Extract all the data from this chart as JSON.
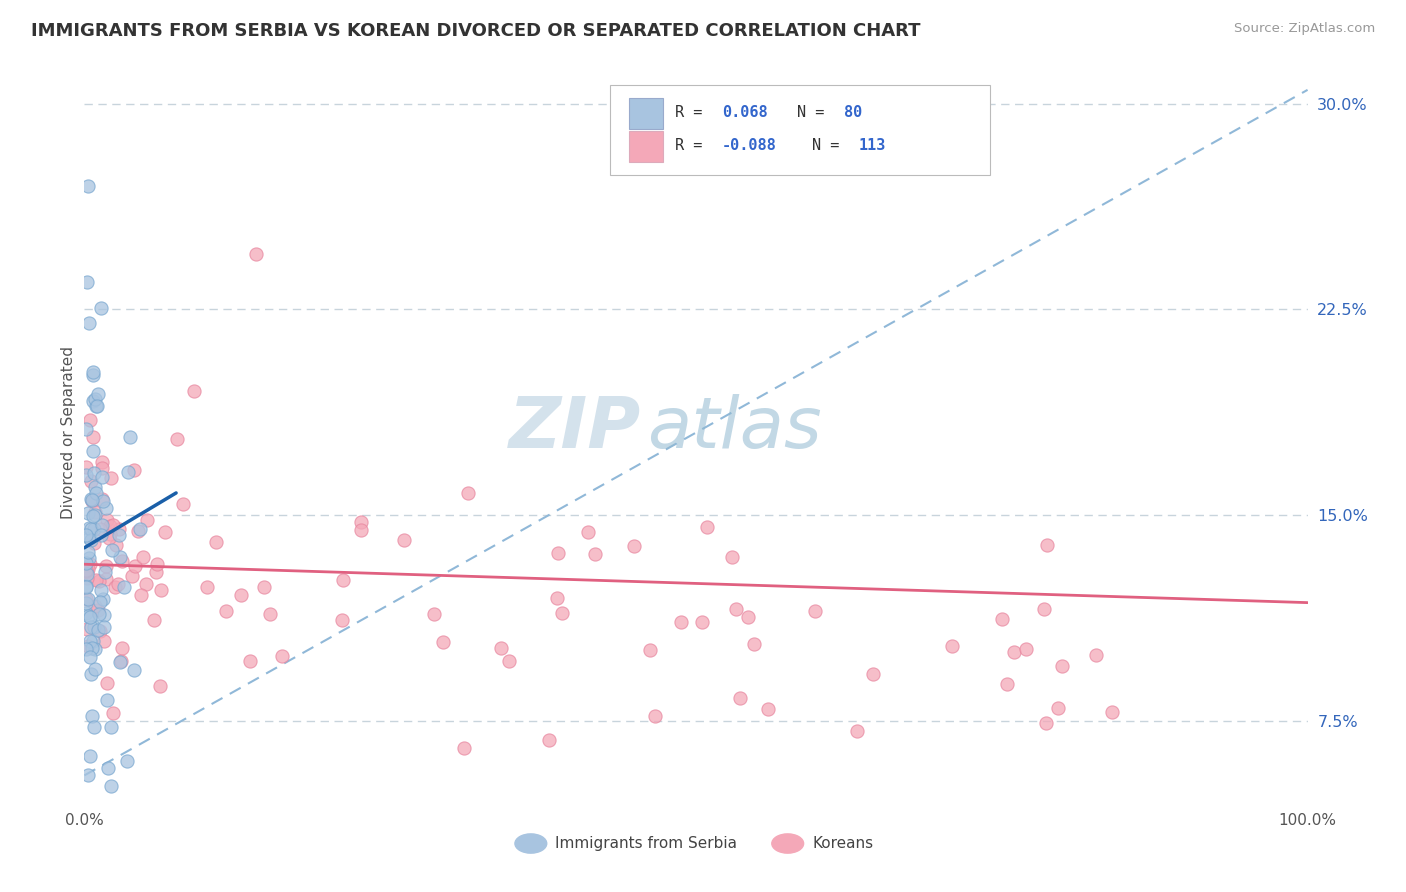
{
  "title": "IMMIGRANTS FROM SERBIA VS KOREAN DIVORCED OR SEPARATED CORRELATION CHART",
  "source": "Source: ZipAtlas.com",
  "ylabel": "Divorced or Separated",
  "y_ticks": [
    0.075,
    0.15,
    0.225,
    0.3
  ],
  "y_tick_labels": [
    "7.5%",
    "15.0%",
    "22.5%",
    "30.0%"
  ],
  "xlim": [
    0.0,
    1.0
  ],
  "ylim": [
    0.045,
    0.315
  ],
  "legend_label_blue": "Immigrants from Serbia",
  "legend_label_pink": "Koreans",
  "blue_color": "#a8c4e0",
  "pink_color": "#f4a8b8",
  "blue_edge_color": "#7aa8d0",
  "pink_edge_color": "#e888a0",
  "trendline_blue_color": "#1a5fa8",
  "trendline_pink_color": "#e06080",
  "trendline_dashed_color": "#90b8d8",
  "watermark_zip": "ZIP",
  "watermark_atlas": "atlas",
  "watermark_color_zip": "#c8dae8",
  "watermark_color_atlas": "#a8c4d8"
}
